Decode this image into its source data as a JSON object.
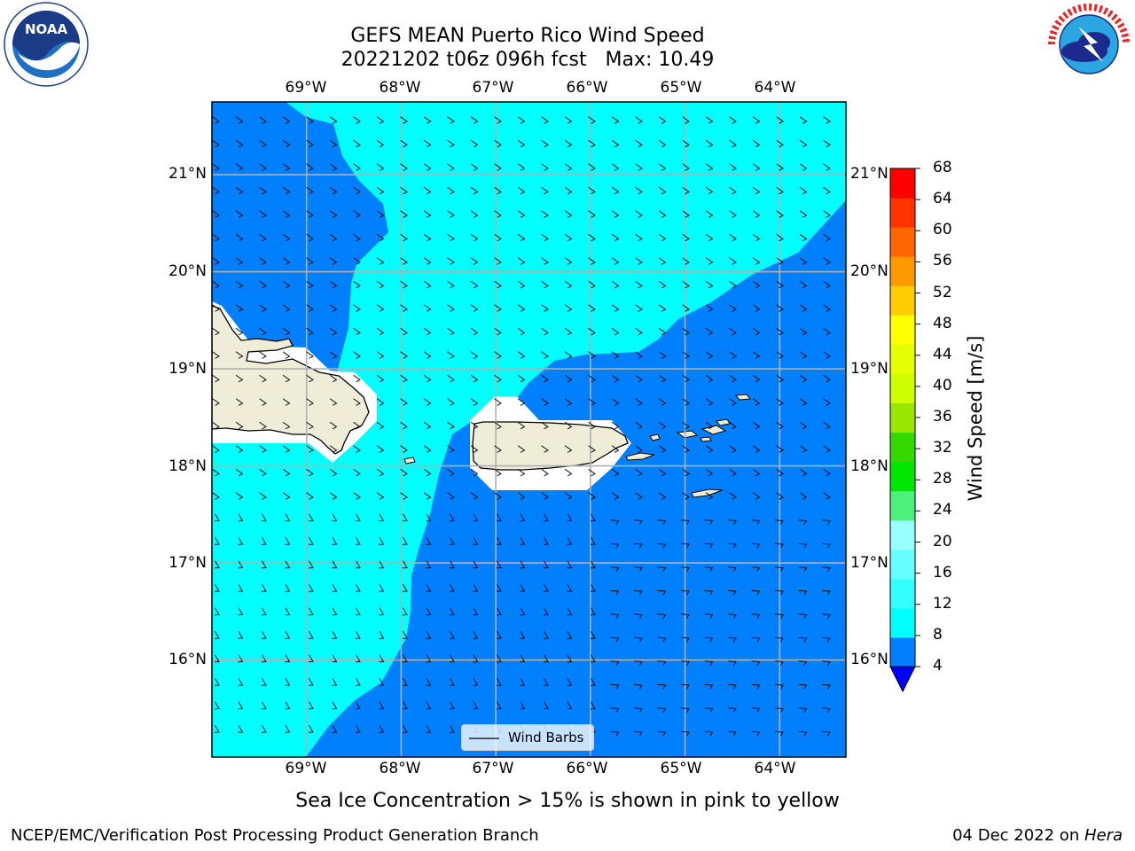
{
  "title": {
    "line1": "GEFS MEAN Puerto Rico Wind Speed",
    "line2": "20221202 t06z 096h fcst   Max: 10.49"
  },
  "axes": {
    "lon_labels": [
      "69°W",
      "68°W",
      "67°W",
      "66°W",
      "65°W",
      "64°W"
    ],
    "lat_labels": [
      "21°N",
      "20°N",
      "19°N",
      "18°N",
      "17°N",
      "16°N"
    ]
  },
  "legend": {
    "label": "Wind Barbs"
  },
  "colorbar": {
    "label": "Wind Speed [m/s]",
    "ticks": [
      "4",
      "8",
      "12",
      "16",
      "20",
      "24",
      "28",
      "32",
      "36",
      "40",
      "44",
      "48",
      "52",
      "56",
      "60",
      "64",
      "68"
    ],
    "colors": [
      "#0080ff",
      "#00ffff",
      "#33ffff",
      "#66ffff",
      "#99ffff",
      "#4cf07a",
      "#00e600",
      "#33d900",
      "#99e600",
      "#ccff00",
      "#e6ff00",
      "#ffff00",
      "#ffcc00",
      "#ff9900",
      "#ff6600",
      "#ff3300",
      "#ff0000"
    ],
    "under_color": "#0000ff"
  },
  "chart_data": {
    "type": "map",
    "xlim": [
      -70.0,
      -63.3
    ],
    "ylim": [
      15.0,
      21.75
    ],
    "lon_ticks": [
      -69,
      -68,
      -67,
      -66,
      -65,
      -64
    ],
    "lat_ticks": [
      21,
      20,
      19,
      18,
      17,
      16
    ],
    "grid": true,
    "max_value": 10.49,
    "field_levels": [
      4,
      8
    ],
    "field_colors": [
      "#0080ff",
      "#00ffff"
    ]
  },
  "footer": {
    "note": "Sea Ice Concentration > 15% is shown in pink to yellow",
    "left": "NCEP/EMC/Verification Post Processing Product Generation Branch",
    "right_date": "04 Dec 2022 on ",
    "right_host": "Hera"
  },
  "logos": {
    "noaa": "NOAA",
    "nws": "NATIONAL WEATHER SERVICE",
    "noaa_ring": "NATIONAL OCEANIC AND ATMOSPHERIC ADMINISTRATION · U.S. DEPARTMENT OF COMMERCE"
  }
}
